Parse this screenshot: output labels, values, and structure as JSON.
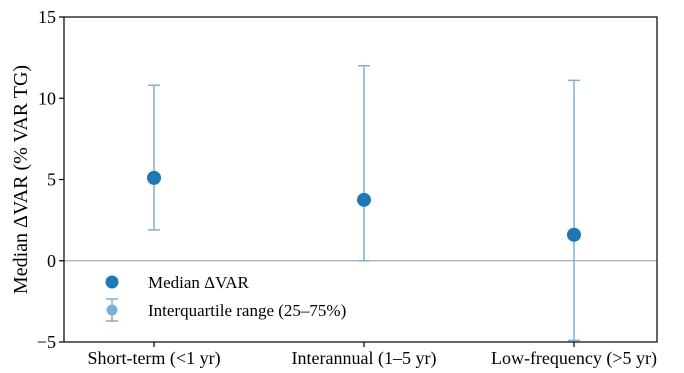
{
  "chart_data": {
    "type": "scatter",
    "ylabel": "Median ΔVAR (% VAR TG)",
    "xlabel": "",
    "ylim": [
      -5,
      15
    ],
    "yticks": [
      -5,
      0,
      5,
      10,
      15
    ],
    "categories": [
      "Short-term (<1 yr)",
      "Interannual (1–5 yr)",
      "Low-frequency (>5 yr)"
    ],
    "series": [
      {
        "name": "Median ΔVAR",
        "values": [
          5.1,
          3.75,
          1.6
        ],
        "color": "#1f77b4"
      },
      {
        "name": "Interquartile range (25–75%)",
        "lower": [
          1.9,
          0.0,
          -4.9
        ],
        "upper": [
          10.8,
          12.0,
          11.1
        ],
        "color": "#7fb0d6"
      }
    ],
    "reference_line": {
      "y": 0,
      "color": "#aaaaaa"
    },
    "grid": false,
    "legend_position": "lower-left"
  }
}
